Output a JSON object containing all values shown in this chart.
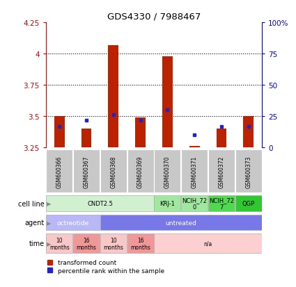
{
  "title": "GDS4330 / 7988467",
  "samples": [
    "GSM600366",
    "GSM600367",
    "GSM600368",
    "GSM600369",
    "GSM600370",
    "GSM600371",
    "GSM600372",
    "GSM600373"
  ],
  "red_values": [
    3.5,
    3.4,
    4.07,
    3.49,
    3.98,
    3.26,
    3.4,
    3.5
  ],
  "blue_values": [
    3.42,
    3.47,
    3.51,
    3.47,
    3.55,
    3.35,
    3.42,
    3.42
  ],
  "red_base": 3.25,
  "ylim": [
    3.25,
    4.25
  ],
  "y_ticks_left": [
    3.25,
    3.5,
    3.75,
    4.0,
    4.25
  ],
  "y_ticks_right": [
    0,
    25,
    50,
    75,
    100
  ],
  "dotted_lines": [
    3.5,
    3.75,
    4.0
  ],
  "cell_line_groups": [
    {
      "label": "CNDT2.5",
      "start": 0,
      "end": 3,
      "color": "#d0f0d0"
    },
    {
      "label": "KRJ-1",
      "start": 4,
      "end": 4,
      "color": "#a0e8a0"
    },
    {
      "label": "NCIH_72\n0",
      "start": 5,
      "end": 5,
      "color": "#a0e8a0"
    },
    {
      "label": "NCIH_72\n7",
      "start": 6,
      "end": 6,
      "color": "#50d850"
    },
    {
      "label": "QGP",
      "start": 7,
      "end": 7,
      "color": "#30c830"
    }
  ],
  "agent_groups": [
    {
      "label": "octreotide",
      "start": 0,
      "end": 1,
      "color": "#b8b8f8"
    },
    {
      "label": "untreated",
      "start": 2,
      "end": 7,
      "color": "#7878e8"
    }
  ],
  "time_groups": [
    {
      "label": "10\nmonths",
      "start": 0,
      "end": 0,
      "color": "#f8c8c8"
    },
    {
      "label": "16\nmonths",
      "start": 1,
      "end": 1,
      "color": "#f09898"
    },
    {
      "label": "10\nmonths",
      "start": 2,
      "end": 2,
      "color": "#f8c8c8"
    },
    {
      "label": "16\nmonths",
      "start": 3,
      "end": 3,
      "color": "#f09898"
    },
    {
      "label": "n/a",
      "start": 4,
      "end": 7,
      "color": "#fcd0d0"
    }
  ],
  "legend_red": "transformed count",
  "legend_blue": "percentile rank within the sample",
  "bar_color": "#bb2200",
  "blue_color": "#2222cc",
  "left_axis_color": "#cc0000",
  "right_axis_color": "#0000cc",
  "bg_color": "#ffffff"
}
